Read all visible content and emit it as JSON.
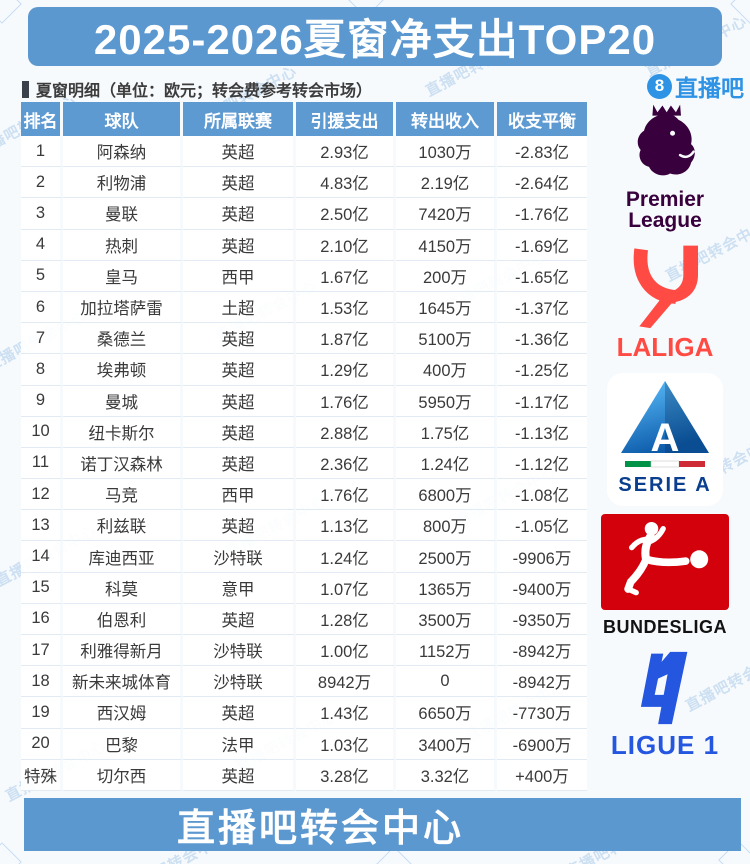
{
  "title": "2025-2026夏窗净支出TOP20",
  "subtitle": "夏窗明细（单位：欧元；转会费参考转会市场）",
  "badge": {
    "number": "8",
    "name": "直播吧"
  },
  "watermark": "直播吧转会中心",
  "footer": "直播吧转会中心",
  "colors": {
    "primary_blue": "#5b98d0",
    "header_blue": "#5e9ad2",
    "brand_blue": "#2e93e5",
    "premier_purple": "#38003c",
    "laliga_red": "#ff4b44",
    "seriea_navy": "#0a3f8f",
    "bundesliga_red": "#d3010c",
    "ligue1_blue": "#2456e0"
  },
  "leagues": [
    {
      "name": "Premier League",
      "label_line1": "Premier",
      "label_line2": "League"
    },
    {
      "name": "LaLiga",
      "label": "LALIGA"
    },
    {
      "name": "Serie A",
      "label": "SERIE A",
      "monogram": "A"
    },
    {
      "name": "Bundesliga",
      "label": "BUNDESLIGA"
    },
    {
      "name": "Ligue 1",
      "label": "LIGUE 1"
    }
  ],
  "chart_data": {
    "type": "table",
    "title": "2025-2026夏窗净支出TOP20",
    "columns": [
      "排名",
      "球队",
      "所属联赛",
      "引援支出",
      "转出收入",
      "收支平衡"
    ],
    "rows": [
      [
        "1",
        "阿森纳",
        "英超",
        "2.93亿",
        "1030万",
        "-2.83亿"
      ],
      [
        "2",
        "利物浦",
        "英超",
        "4.83亿",
        "2.19亿",
        "-2.64亿"
      ],
      [
        "3",
        "曼联",
        "英超",
        "2.50亿",
        "7420万",
        "-1.76亿"
      ],
      [
        "4",
        "热刺",
        "英超",
        "2.10亿",
        "4150万",
        "-1.69亿"
      ],
      [
        "5",
        "皇马",
        "西甲",
        "1.67亿",
        "200万",
        "-1.65亿"
      ],
      [
        "6",
        "加拉塔萨雷",
        "土超",
        "1.53亿",
        "1645万",
        "-1.37亿"
      ],
      [
        "7",
        "桑德兰",
        "英超",
        "1.87亿",
        "5100万",
        "-1.36亿"
      ],
      [
        "8",
        "埃弗顿",
        "英超",
        "1.29亿",
        "400万",
        "-1.25亿"
      ],
      [
        "9",
        "曼城",
        "英超",
        "1.76亿",
        "5950万",
        "-1.17亿"
      ],
      [
        "10",
        "纽卡斯尔",
        "英超",
        "2.88亿",
        "1.75亿",
        "-1.13亿"
      ],
      [
        "11",
        "诺丁汉森林",
        "英超",
        "2.36亿",
        "1.24亿",
        "-1.12亿"
      ],
      [
        "12",
        "马竞",
        "西甲",
        "1.76亿",
        "6800万",
        "-1.08亿"
      ],
      [
        "13",
        "利兹联",
        "英超",
        "1.13亿",
        "800万",
        "-1.05亿"
      ],
      [
        "14",
        "库迪西亚",
        "沙特联",
        "1.24亿",
        "2500万",
        "-9906万"
      ],
      [
        "15",
        "科莫",
        "意甲",
        "1.07亿",
        "1365万",
        "-9400万"
      ],
      [
        "16",
        "伯恩利",
        "英超",
        "1.28亿",
        "3500万",
        "-9350万"
      ],
      [
        "17",
        "利雅得新月",
        "沙特联",
        "1.00亿",
        "1152万",
        "-8942万"
      ],
      [
        "18",
        "新未来城体育",
        "沙特联",
        "8942万",
        "0",
        "-8942万"
      ],
      [
        "19",
        "西汉姆",
        "英超",
        "1.43亿",
        "6650万",
        "-7730万"
      ],
      [
        "20",
        "巴黎",
        "法甲",
        "1.03亿",
        "3400万",
        "-6900万"
      ],
      [
        "特殊",
        "切尔西",
        "英超",
        "3.28亿",
        "3.32亿",
        "+400万"
      ]
    ]
  }
}
